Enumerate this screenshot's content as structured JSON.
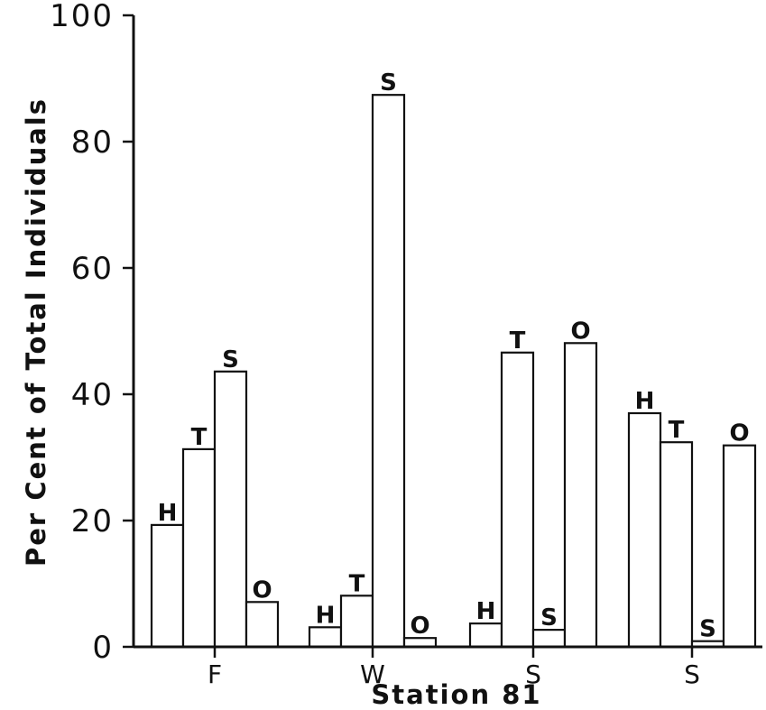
{
  "chart_data": {
    "type": "bar",
    "xlabel": "Station 81",
    "ylabel": "Per Cent of Total Individuals",
    "ylim": [
      0,
      100
    ],
    "yticks": [
      0,
      20,
      40,
      60,
      80,
      100
    ],
    "categories": [
      "F",
      "W",
      "S",
      "S"
    ],
    "groups": [
      {
        "category": "F",
        "bars": [
          {
            "label": "H",
            "value": 19.3
          },
          {
            "label": "T",
            "value": 31.3
          },
          {
            "label": "S",
            "value": 43.6
          },
          {
            "label": "O",
            "value": 7.1
          }
        ]
      },
      {
        "category": "W",
        "bars": [
          {
            "label": "H",
            "value": 3.1
          },
          {
            "label": "T",
            "value": 8.1
          },
          {
            "label": "S",
            "value": 87.4
          },
          {
            "label": "O",
            "value": 1.4
          }
        ]
      },
      {
        "category": "S",
        "bars": [
          {
            "label": "H",
            "value": 3.7
          },
          {
            "label": "T",
            "value": 46.6
          },
          {
            "label": "S",
            "value": 2.7
          },
          {
            "label": "O",
            "value": 48.1
          }
        ]
      },
      {
        "category": "S",
        "bars": [
          {
            "label": "H",
            "value": 37.0
          },
          {
            "label": "T",
            "value": 32.4
          },
          {
            "label": "S",
            "value": 0.9
          },
          {
            "label": "O",
            "value": 31.9
          }
        ]
      }
    ],
    "grid": false,
    "legend": "none"
  }
}
